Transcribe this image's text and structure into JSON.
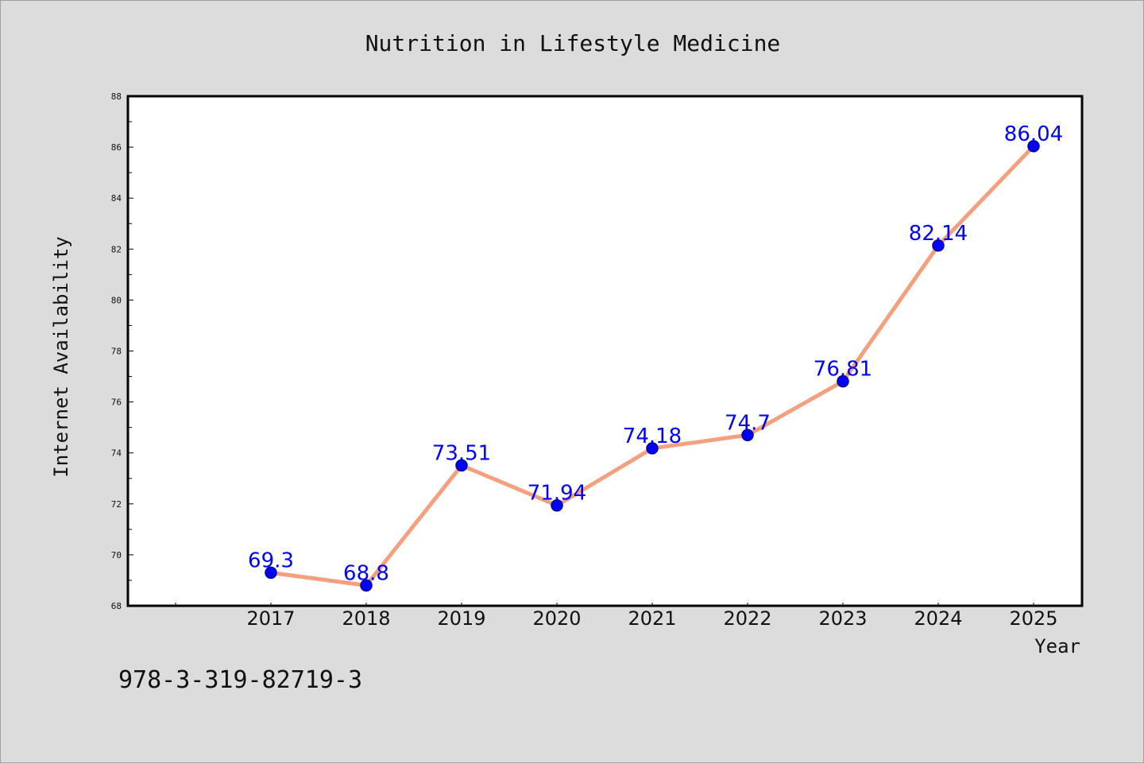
{
  "chart_data": {
    "type": "line",
    "title": "Nutrition in Lifestyle Medicine",
    "xlabel": "Year",
    "ylabel": "Internet Availability",
    "x": [
      "2017",
      "2018",
      "2019",
      "2020",
      "2021",
      "2022",
      "2023",
      "2024",
      "2025"
    ],
    "series": [
      {
        "values": [
          69.3,
          68.8,
          73.51,
          71.94,
          74.18,
          74.7,
          76.81,
          82.14,
          86.04
        ],
        "data_labels": [
          "69.3",
          "68.8",
          "73.51",
          "71.94",
          "74.18",
          "74.7",
          "76.81",
          "82.14",
          "86.04"
        ]
      }
    ],
    "ylim": [
      68,
      88
    ],
    "yticks": [
      68,
      70,
      72,
      74,
      76,
      78,
      80,
      82,
      84,
      86,
      88
    ],
    "grid": false,
    "colors": {
      "line": "#f4a07e",
      "marker": "#0000ff",
      "marker_edge": "#00008b",
      "label": "#0000ff"
    }
  },
  "footnote": "978-3-319-82719-3"
}
